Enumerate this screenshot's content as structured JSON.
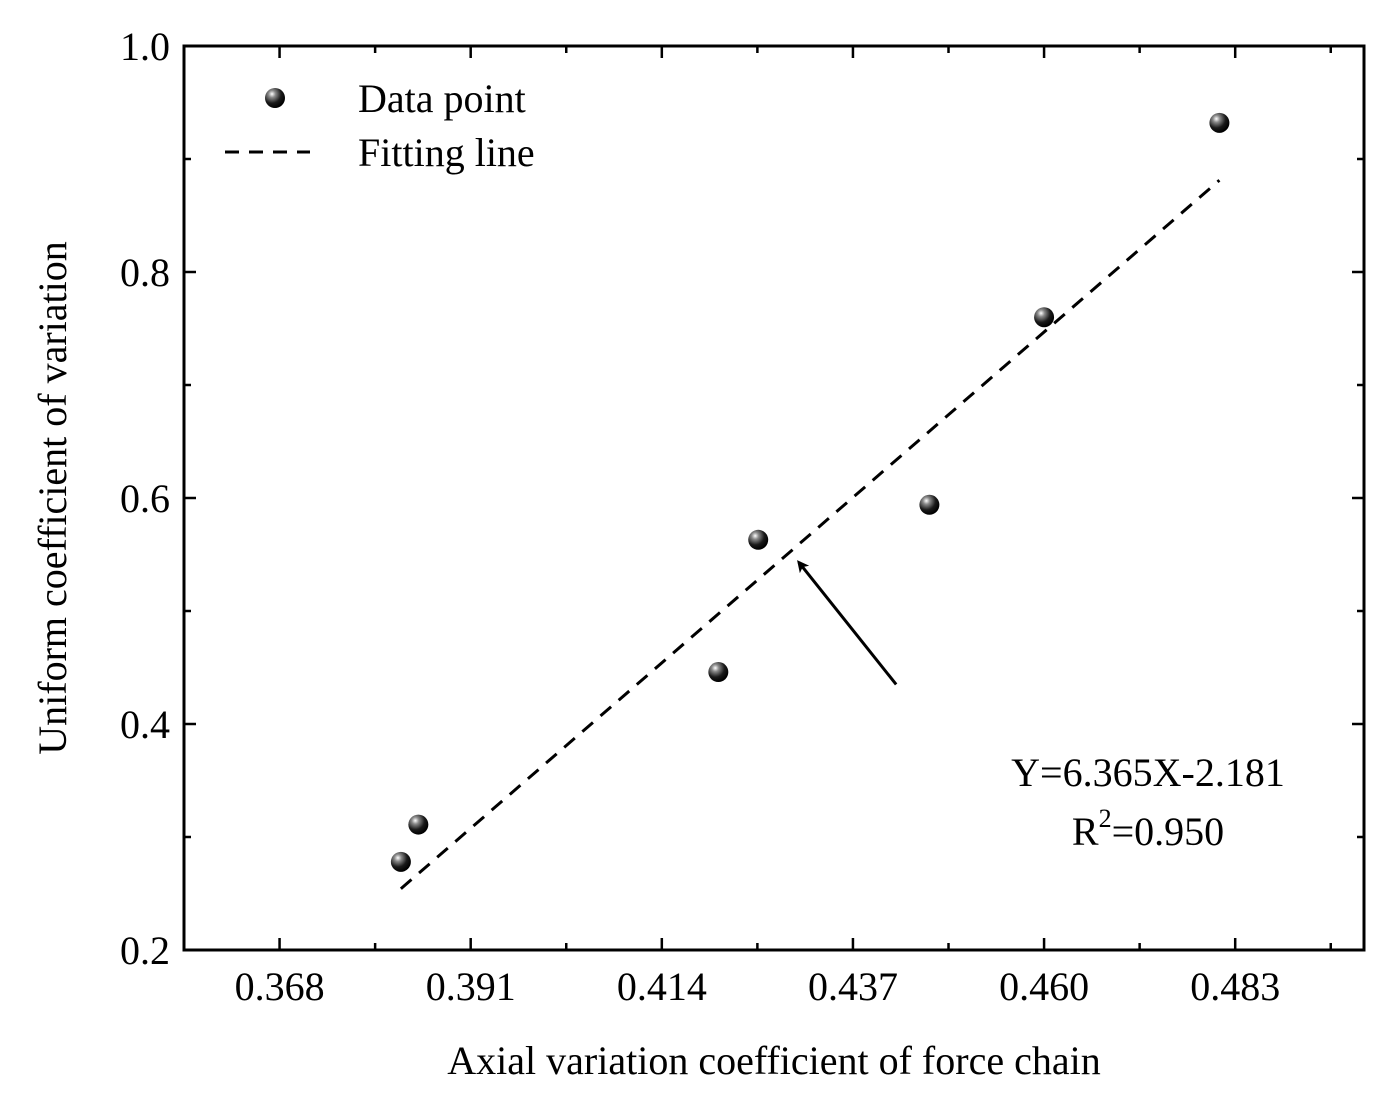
{
  "chart_data": {
    "type": "scatter",
    "xlabel": "Axial variation coefficient of force chain",
    "ylabel": "Uniform coefficient of variation",
    "xlim": [
      0.3565,
      0.4985
    ],
    "ylim": [
      0.2,
      1.0
    ],
    "xticks": [
      "0.368",
      "0.391",
      "0.414",
      "0.437",
      "0.460",
      "0.483"
    ],
    "yticks": [
      "0.2",
      "0.4",
      "0.6",
      "0.8",
      "1.0"
    ],
    "series": [
      {
        "name": "Data point",
        "kind": "scatter",
        "points": [
          [
            0.3826,
            0.278
          ],
          [
            0.3847,
            0.311
          ],
          [
            0.4208,
            0.446
          ],
          [
            0.4256,
            0.563
          ],
          [
            0.4462,
            0.594
          ],
          [
            0.46,
            0.76
          ],
          [
            0.4811,
            0.932
          ]
        ]
      },
      {
        "name": "Fitting line",
        "kind": "line",
        "style": "dashed",
        "slope": 6.365,
        "intercept": -2.181,
        "x_range": [
          0.3826,
          0.4811
        ]
      }
    ],
    "legend": {
      "position": "top-left",
      "entries": [
        "Data point",
        "Fitting line"
      ]
    },
    "annotation": {
      "equation": "Y=6.365X-2.181",
      "r2_prefix": "R",
      "r2_sup": "2",
      "r2_value": "=0.950",
      "arrow_from": [
        0.4422,
        0.435
      ],
      "arrow_to": [
        0.4305,
        0.543
      ]
    }
  }
}
